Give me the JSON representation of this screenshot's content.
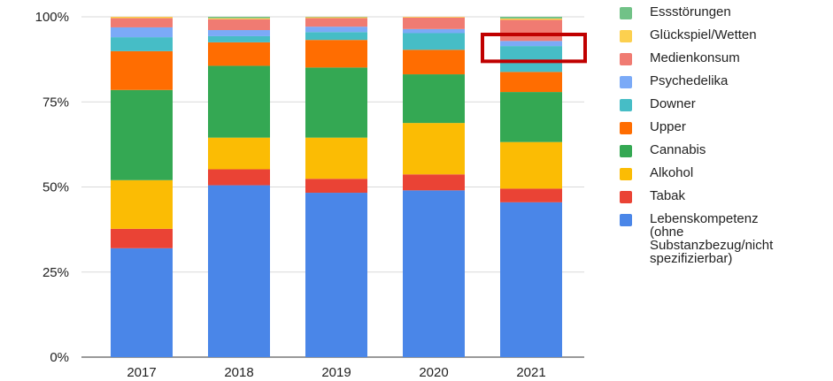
{
  "chart_data": {
    "type": "bar",
    "stacked": true,
    "categories": [
      "2017",
      "2018",
      "2019",
      "2020",
      "2021"
    ],
    "ylim": [
      0,
      100
    ],
    "yticks": [
      "0%",
      "25%",
      "50%",
      "75%",
      "100%"
    ],
    "grid": true,
    "legend_position": "right",
    "series": [
      {
        "name": "Lebenskompetenz\n(ohne\nSubstanzbezug/nicht\nspezifizierbar)",
        "color": "#4a86e8",
        "values": [
          32,
          50.5,
          48.3,
          49,
          45.5
        ]
      },
      {
        "name": "Tabak",
        "color": "#ea4335",
        "values": [
          5.7,
          4.7,
          4.1,
          4.7,
          4
        ]
      },
      {
        "name": "Alkohol",
        "color": "#fbbc04",
        "values": [
          14.3,
          9.3,
          12.1,
          15.1,
          13.7
        ]
      },
      {
        "name": "Cannabis",
        "color": "#34a853",
        "values": [
          26.5,
          21.1,
          20.6,
          14.3,
          14.7
        ]
      },
      {
        "name": "Upper",
        "color": "#ff6d01",
        "values": [
          11.4,
          6.9,
          8.1,
          7.2,
          5.9
        ]
      },
      {
        "name": "Downer",
        "color": "#46bdc6",
        "values": [
          4.1,
          1.8,
          2.3,
          4.9,
          7.6
        ]
      },
      {
        "name": "Psychedelika",
        "color": "#7baaf7",
        "values": [
          2.9,
          1.8,
          1.6,
          1.2,
          1.5
        ]
      },
      {
        "name": "Medienkonsum",
        "color": "#f07b72",
        "values": [
          2.7,
          3.2,
          2.5,
          3.4,
          6.2
        ]
      },
      {
        "name": "Glückspiel/Wetten",
        "color": "#fcd04f",
        "values": [
          0.4,
          0.3,
          0.3,
          0.2,
          0.4
        ]
      },
      {
        "name": "Essstörungen",
        "color": "#71c287",
        "values": [
          0,
          0.4,
          0.1,
          0,
          0.5
        ]
      }
    ],
    "highlight": {
      "category": "2021",
      "from": 89,
      "to": 100,
      "color": "#c00000"
    }
  }
}
